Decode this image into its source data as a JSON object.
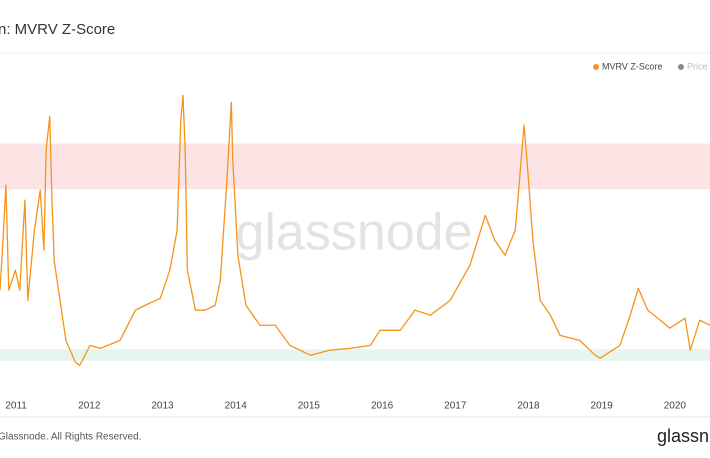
{
  "chart_data": {
    "type": "line",
    "title": "n: MVRV Z-Score",
    "watermark": "glassnode",
    "footer": "Glassnode. All Rights Reserved.",
    "logo": "glassn",
    "x": [
      2010.78,
      2010.82,
      2010.86,
      2010.9,
      2010.99,
      2011.05,
      2011.12,
      2011.16,
      2011.25,
      2011.33,
      2011.38,
      2011.41,
      2011.46,
      2011.49,
      2011.52,
      2011.6,
      2011.68,
      2011.81,
      2011.87,
      2012.01,
      2012.15,
      2012.42,
      2012.63,
      2012.76,
      2012.97,
      2013.1,
      2013.2,
      2013.25,
      2013.28,
      2013.31,
      2013.34,
      2013.45,
      2013.58,
      2013.72,
      2013.79,
      2013.88,
      2013.94,
      2013.96,
      2014.03,
      2014.14,
      2014.33,
      2014.54,
      2014.74,
      2015.02,
      2015.29,
      2015.56,
      2015.84,
      2015.97,
      2016.25,
      2016.45,
      2016.66,
      2016.93,
      2017.2,
      2017.41,
      2017.54,
      2017.68,
      2017.82,
      2017.9,
      2017.94,
      2017.98,
      2018.06,
      2018.16,
      2018.3,
      2018.43,
      2018.7,
      2018.91,
      2018.98,
      2019.25,
      2019.39,
      2019.5,
      2019.63,
      2019.8,
      2019.93,
      2020.14,
      2020.21,
      2020.34,
      2020.48
    ],
    "series": [
      {
        "name": "MVRV Z-Score",
        "color": "#f7931a",
        "values": [
          2.58,
          4.77,
          7.17,
          2.58,
          3.46,
          2.58,
          6.52,
          2.14,
          5.21,
          6.96,
          4.33,
          8.71,
          10.19,
          6.52,
          3.89,
          2.14,
          0.39,
          -0.57,
          -0.7,
          0.17,
          0.04,
          0.39,
          1.71,
          1.92,
          2.23,
          3.46,
          5.21,
          10.02,
          11.11,
          8.71,
          3.46,
          1.71,
          1.71,
          1.92,
          3.02,
          7.39,
          10.8,
          8.27,
          4.11,
          1.92,
          1.05,
          1.05,
          0.17,
          -0.26,
          -0.04,
          0.04,
          0.17,
          0.83,
          0.83,
          1.71,
          1.49,
          2.14,
          3.67,
          5.86,
          4.77,
          4.11,
          5.21,
          8.27,
          9.8,
          8.27,
          4.77,
          2.14,
          1.49,
          0.61,
          0.39,
          -0.26,
          -0.39,
          0.17,
          1.49,
          2.67,
          1.71,
          1.27,
          0.92,
          1.36,
          -0.04,
          1.27,
          1.05
        ]
      }
    ],
    "legend_items": [
      {
        "name": "Price (",
        "color": "#888888"
      }
    ],
    "bands": [
      {
        "from": 7,
        "to": 9,
        "color": "#fde4e4"
      },
      {
        "from": -0.5,
        "to": 0,
        "color": "#e6f6ee"
      }
    ],
    "xlim": [
      2010.78,
      2020.48
    ],
    "xticks": [
      2011,
      2012,
      2013,
      2014,
      2015,
      2016,
      2017,
      2018,
      2019,
      2020
    ],
    "ylim": [
      -2,
      12.87
    ]
  }
}
